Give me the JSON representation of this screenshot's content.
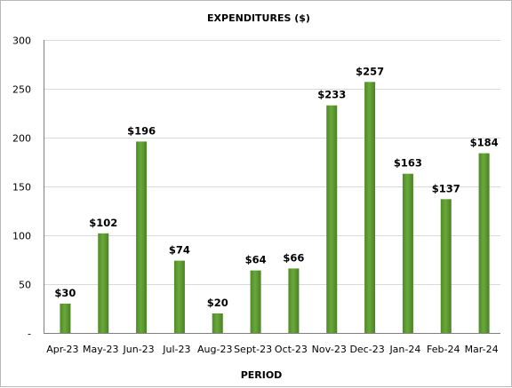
{
  "chart_data": {
    "type": "bar",
    "title": "EXPENDITURES   ($)",
    "xlabel": "PERIOD",
    "ylabel": "",
    "categories": [
      "Apr-23",
      "May-23",
      "Jun-23",
      "Jul-23",
      "Aug-23",
      "Sept-23",
      "Oct-23",
      "Nov-23",
      "Dec-23",
      "Jan-24",
      "Feb-24",
      "Mar-24"
    ],
    "values": [
      30,
      102,
      196,
      74,
      20,
      64,
      66,
      233,
      257,
      163,
      137,
      184
    ],
    "data_labels": [
      "$30",
      "$102",
      "$196",
      "$74",
      "$20",
      "$64",
      "$66",
      "$233",
      "$257",
      "$163",
      "$137",
      "$184"
    ],
    "ylim": [
      0,
      300
    ],
    "yticks": [
      0,
      50,
      100,
      150,
      200,
      250,
      300
    ],
    "ytick_labels": [
      "-",
      "50",
      "100",
      "150",
      "200",
      "250",
      "300"
    ],
    "grid": "horizontal",
    "legend": "none",
    "bar_color": "#5b9a2f",
    "bar_highlight_color": "#76b540"
  }
}
